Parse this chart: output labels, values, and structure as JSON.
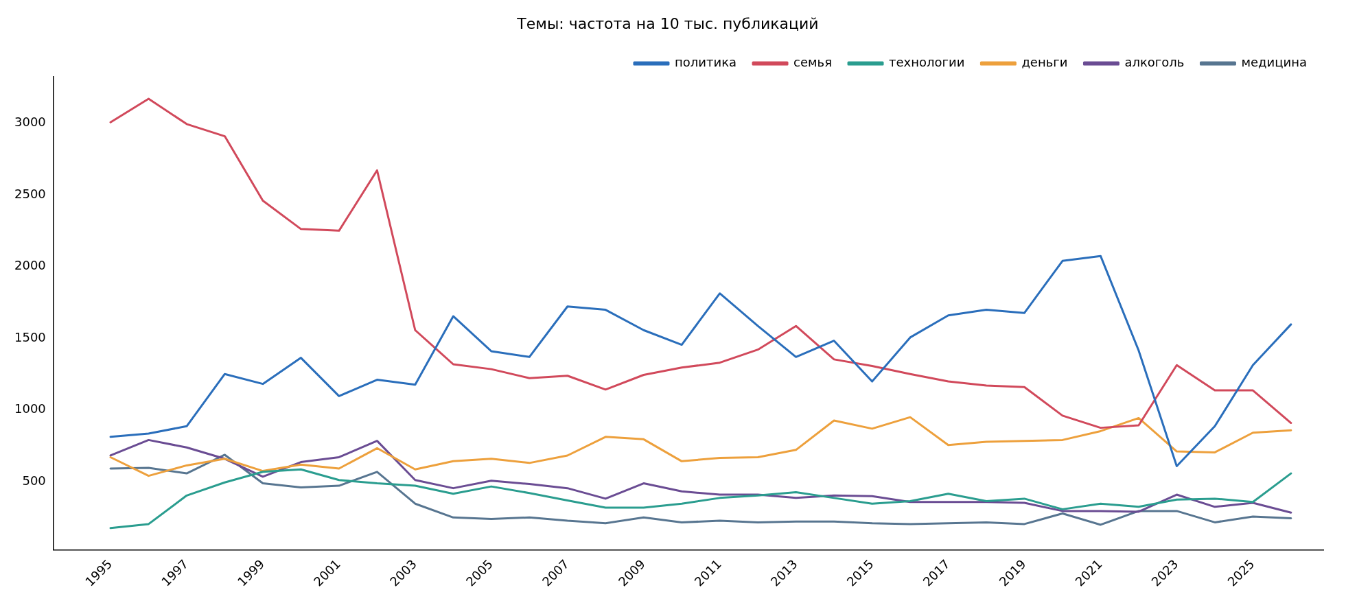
{
  "chart_data": {
    "type": "line",
    "title": "Темы: частота на 10 тыс. публикаций",
    "x": [
      1995,
      1996,
      1997,
      1998,
      1999,
      2000,
      2001,
      2002,
      2003,
      2004,
      2005,
      2006,
      2007,
      2008,
      2009,
      2010,
      2011,
      2012,
      2013,
      2014,
      2015,
      2016,
      2017,
      2018,
      2019,
      2020,
      2021,
      2022,
      2023,
      2024,
      2025,
      2026
    ],
    "series": [
      {
        "name": "политика",
        "color": "#2a6ebb",
        "values": [
          812,
          835,
          886,
          1250,
          1181,
          1363,
          1096,
          1210,
          1176,
          1653,
          1409,
          1369,
          1721,
          1698,
          1556,
          1454,
          1812,
          1585,
          1369,
          1482,
          1198,
          1505,
          1659,
          1698,
          1676,
          2039,
          2073,
          1414,
          608,
          886,
          1312,
          1596
        ]
      },
      {
        "name": "семья",
        "color": "#d1495b",
        "values": [
          3005,
          3169,
          2993,
          2908,
          2459,
          2261,
          2249,
          2670,
          1556,
          1318,
          1284,
          1221,
          1238,
          1142,
          1244,
          1295,
          1329,
          1420,
          1585,
          1352,
          1306,
          1250,
          1198,
          1170,
          1159,
          960,
          875,
          892,
          1312,
          1136,
          1136,
          909
        ]
      },
      {
        "name": "технологии",
        "color": "#2a9d8f",
        "values": [
          176,
          204,
          403,
          494,
          568,
          585,
          511,
          488,
          471,
          415,
          466,
          420,
          369,
          318,
          318,
          346,
          386,
          403,
          426,
          386,
          346,
          364,
          415,
          364,
          381,
          307,
          346,
          324,
          375,
          381,
          358,
          557
        ]
      },
      {
        "name": "деньги",
        "color": "#eda03c",
        "values": [
          670,
          540,
          613,
          659,
          574,
          619,
          591,
          733,
          585,
          642,
          659,
          630,
          682,
          812,
          795,
          642,
          665,
          670,
          721,
          926,
          869,
          949,
          755,
          778,
          784,
          790,
          852,
          943,
          710,
          704,
          841,
          858
        ]
      },
      {
        "name": "алкоголь",
        "color": "#6a4c93",
        "values": [
          682,
          790,
          738,
          659,
          534,
          636,
          670,
          784,
          511,
          454,
          506,
          483,
          454,
          381,
          488,
          432,
          409,
          409,
          386,
          403,
          398,
          358,
          358,
          358,
          352,
          295,
          295,
          290,
          409,
          324,
          352,
          284
        ]
      },
      {
        "name": "медицина",
        "color": "#577590",
        "values": [
          591,
          596,
          557,
          687,
          488,
          460,
          471,
          568,
          346,
          250,
          239,
          250,
          227,
          210,
          250,
          216,
          227,
          216,
          222,
          222,
          210,
          204,
          210,
          216,
          204,
          278,
          199,
          295,
          295,
          216,
          256,
          244
        ]
      }
    ],
    "xlim": [
      1993.5,
      2026.85
    ],
    "ylim": [
      25,
      3325
    ],
    "xticks": [
      1995,
      1997,
      1999,
      2001,
      2003,
      2005,
      2007,
      2009,
      2011,
      2013,
      2015,
      2017,
      2019,
      2021,
      2023,
      2025
    ],
    "yticks": [
      500,
      1000,
      1500,
      2000,
      2500,
      3000
    ],
    "grid": false,
    "legend": "top right",
    "marker": "none",
    "line_style": "solid"
  }
}
